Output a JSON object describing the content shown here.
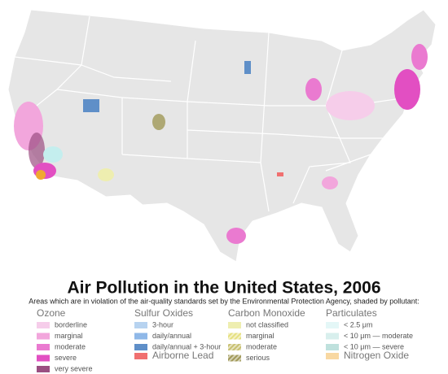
{
  "title": "Air Pollution in the United States, 2006",
  "subtitle": "Areas which are in violation of the air-quality standards set by the Environmental Protection Agency, shaded by pollutant:",
  "legend": [
    {
      "heading": "Ozone",
      "items": [
        {
          "label": "borderline",
          "color": "#f6cdea"
        },
        {
          "label": "marginal",
          "color": "#f2a6dc"
        },
        {
          "label": "moderate",
          "color": "#ea7ad0"
        },
        {
          "label": "severe",
          "color": "#e24fc2"
        },
        {
          "label": "very severe",
          "color": "#9b4f82"
        }
      ]
    },
    {
      "heading": "Sulfur Oxides",
      "items": [
        {
          "label": "3-hour",
          "color": "#b7d3f0"
        },
        {
          "label": "daily/annual",
          "color": "#8fb8e8"
        },
        {
          "label": "daily/annual + 3-hour",
          "color": "#5f8fc8"
        }
      ]
    },
    {
      "heading": "Airborne Lead",
      "color": "#f07070"
    },
    {
      "heading": "Carbon Monoxide",
      "items": [
        {
          "label": "not classified",
          "color": "#eeeeb0"
        },
        {
          "label": "marginal",
          "color": "#e6e080",
          "pattern": "hatch"
        },
        {
          "label": "moderate",
          "color": "#c8c070",
          "pattern": "hatch"
        },
        {
          "label": "serious",
          "color": "#a09858",
          "pattern": "hatch"
        }
      ]
    },
    {
      "heading": "Particulates",
      "items": [
        {
          "label": "< 2.5 μm",
          "color": "#c4eeee",
          "pattern": "dots"
        },
        {
          "label": "< 10 μm — moderate",
          "color": "#a8dcd8",
          "pattern": "dots"
        },
        {
          "label": "< 10 μm — severe",
          "color": "#70bcb4",
          "pattern": "dots"
        }
      ]
    },
    {
      "heading": "Nitrogen Oxide",
      "color": "#f0a830",
      "pattern": "dots"
    }
  ]
}
